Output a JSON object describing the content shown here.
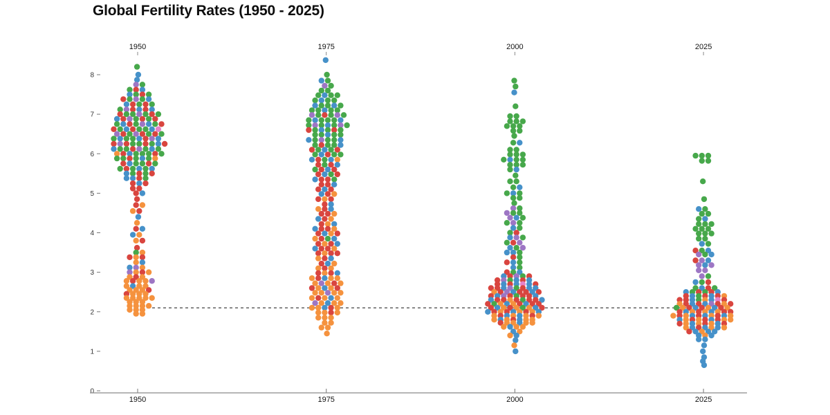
{
  "title": "Global Fertility Rates (1950 - 2025)",
  "palette": {
    "G": "#47a84b",
    "B": "#4691c9",
    "R": "#d9453f",
    "O": "#f5923e",
    "P": "#9d76c4",
    "K": "#e583c9"
  },
  "axis_colors": {
    "line": "#8a8a8a",
    "tick_text": "#222222",
    "dashed_line": "#2b2b2b"
  },
  "chart_data": {
    "type": "scatter",
    "subtype": "beeswarm",
    "title": "Global Fertility Rates (1950 - 2025)",
    "xlabel": "",
    "ylabel": "",
    "x_ticks": [
      "1950",
      "1975",
      "2000",
      "2025"
    ],
    "y_ticks": [
      0,
      1,
      2,
      3,
      4,
      5,
      6,
      7,
      8
    ],
    "ylim": [
      0,
      8.6
    ],
    "grid": false,
    "legend": "none",
    "reference_line": {
      "value": 2.1,
      "style": "dashed"
    },
    "series": [
      {
        "year": "1950",
        "rows": [
          [
            8.2,
            "G"
          ],
          [
            8.0,
            "B"
          ],
          [
            7.87,
            "B"
          ],
          [
            7.75,
            "PG"
          ],
          [
            7.62,
            "GRB"
          ],
          [
            7.5,
            "BGRG"
          ],
          [
            7.38,
            "RGPGB"
          ],
          [
            7.25,
            "BRGRG"
          ],
          [
            7.12,
            "GPRBRB"
          ],
          [
            7.0,
            "RGGPGRG"
          ],
          [
            6.88,
            "BRPGRGR"
          ],
          [
            6.75,
            "GBRGPBGR"
          ],
          [
            6.62,
            "RGBRGGBK"
          ],
          [
            6.5,
            "PRGPRGRG"
          ],
          [
            6.38,
            "GBGGBRPB"
          ],
          [
            6.25,
            "RPRGGRGBR"
          ],
          [
            6.12,
            "BGGRPGBG"
          ],
          [
            6.0,
            "ORBGGGRG"
          ],
          [
            5.88,
            "GGRGBGO"
          ],
          [
            5.75,
            "RBGGRG"
          ],
          [
            5.62,
            "GRGBGB"
          ],
          [
            5.5,
            "BGRGR"
          ],
          [
            5.38,
            "BBRG"
          ],
          [
            5.25,
            "RBR"
          ],
          [
            5.12,
            "RR"
          ],
          [
            5.0,
            "RB"
          ],
          [
            4.85,
            "R"
          ],
          [
            4.7,
            "RO"
          ],
          [
            4.55,
            "OR"
          ],
          [
            4.4,
            "B"
          ],
          [
            4.25,
            "O"
          ],
          [
            4.1,
            "RB"
          ],
          [
            3.95,
            "BO"
          ],
          [
            3.8,
            "OR"
          ],
          [
            3.62,
            "R"
          ],
          [
            3.5,
            "GO"
          ],
          [
            3.38,
            "ROR"
          ],
          [
            3.25,
            "OB"
          ],
          [
            3.12,
            "BPO"
          ],
          [
            3.0,
            "PORO"
          ],
          [
            2.88,
            "ORO"
          ],
          [
            2.78,
            "OROOP"
          ],
          [
            2.65,
            "OBOO"
          ],
          [
            2.55,
            "OOOR"
          ],
          [
            2.45,
            "ROOO"
          ],
          [
            2.35,
            "OOOOO"
          ],
          [
            2.25,
            "OOO"
          ],
          [
            2.15,
            "OOOO"
          ],
          [
            2.05,
            "OOO"
          ],
          [
            1.95,
            "OO"
          ]
        ]
      },
      {
        "year": "1975",
        "rows": [
          [
            8.37,
            "B"
          ],
          [
            8.0,
            "G"
          ],
          [
            7.85,
            "BG"
          ],
          [
            7.72,
            "PG"
          ],
          [
            7.6,
            "GG"
          ],
          [
            7.48,
            "GBGG"
          ],
          [
            7.35,
            "GBGG"
          ],
          [
            7.22,
            "BGGBG"
          ],
          [
            7.1,
            "GGBGG"
          ],
          [
            6.98,
            "PGRGPG"
          ],
          [
            6.85,
            "GBGGGB"
          ],
          [
            6.72,
            "GPGBGPG"
          ],
          [
            6.6,
            "RGBGRG"
          ],
          [
            6.48,
            "GGBGG"
          ],
          [
            6.35,
            "BGPGGB"
          ],
          [
            6.22,
            "GRGGB"
          ],
          [
            6.1,
            "RGBGR"
          ],
          [
            5.98,
            "GBRGG"
          ],
          [
            5.85,
            "BRGBO"
          ],
          [
            5.72,
            "RGRB"
          ],
          [
            5.6,
            "GRBR"
          ],
          [
            5.48,
            "RBGR"
          ],
          [
            5.35,
            "BRRG"
          ],
          [
            5.22,
            "RRB"
          ],
          [
            5.1,
            "RBR"
          ],
          [
            4.98,
            "BRO"
          ],
          [
            4.85,
            "ROR"
          ],
          [
            4.72,
            "RB"
          ],
          [
            4.6,
            "ORB"
          ],
          [
            4.48,
            "RRO"
          ],
          [
            4.35,
            "BRO"
          ],
          [
            4.22,
            "ROB"
          ],
          [
            4.1,
            "BRRO"
          ],
          [
            3.98,
            "RBOR"
          ],
          [
            3.85,
            "ORGB"
          ],
          [
            3.72,
            "RORB"
          ],
          [
            3.6,
            "BRRO"
          ],
          [
            3.48,
            "RORR"
          ],
          [
            3.35,
            "ORB"
          ],
          [
            3.22,
            "RBO"
          ],
          [
            3.1,
            "ORO"
          ],
          [
            2.98,
            "RORB"
          ],
          [
            2.85,
            "ORBOO"
          ],
          [
            2.72,
            "OPORO"
          ],
          [
            2.6,
            "ROBOR"
          ],
          [
            2.48,
            "OOPOO"
          ],
          [
            2.35,
            "OROBO"
          ],
          [
            2.22,
            "POBOO"
          ],
          [
            2.1,
            "OOBRO"
          ],
          [
            1.98,
            "OORO"
          ],
          [
            1.85,
            "OOO"
          ],
          [
            1.72,
            "OO"
          ],
          [
            1.6,
            "OO"
          ],
          [
            1.45,
            "O"
          ]
        ]
      },
      {
        "year": "2000",
        "rows": [
          [
            7.85,
            "G"
          ],
          [
            7.7,
            "G"
          ],
          [
            7.55,
            "B"
          ],
          [
            7.2,
            "G"
          ],
          [
            6.95,
            "GG"
          ],
          [
            6.82,
            "GGG"
          ],
          [
            6.7,
            "GGG"
          ],
          [
            6.58,
            "GG"
          ],
          [
            6.45,
            "G"
          ],
          [
            6.28,
            "GB"
          ],
          [
            6.1,
            "GG"
          ],
          [
            5.98,
            "GGG"
          ],
          [
            5.85,
            "GBGG"
          ],
          [
            5.72,
            "GGG"
          ],
          [
            5.6,
            "GB"
          ],
          [
            5.45,
            "G"
          ],
          [
            5.3,
            "GG"
          ],
          [
            5.15,
            "GB"
          ],
          [
            5.0,
            "GBG"
          ],
          [
            4.88,
            "GG"
          ],
          [
            4.75,
            "G"
          ],
          [
            4.62,
            "PG"
          ],
          [
            4.5,
            "PGG"
          ],
          [
            4.38,
            "PBG"
          ],
          [
            4.25,
            "GPG"
          ],
          [
            4.12,
            "BG"
          ],
          [
            4.0,
            "GR"
          ],
          [
            3.88,
            "BPG"
          ],
          [
            3.75,
            "GRP"
          ],
          [
            3.62,
            "BGP"
          ],
          [
            3.5,
            "BBG"
          ],
          [
            3.38,
            "RG"
          ],
          [
            3.25,
            "RBG"
          ],
          [
            3.12,
            "BG"
          ],
          [
            3.0,
            "RGB"
          ],
          [
            2.9,
            "BRPGR"
          ],
          [
            2.8,
            "RPGBRB"
          ],
          [
            2.7,
            "RBRBKBR"
          ],
          [
            2.6,
            "RRBPGRBB"
          ],
          [
            2.5,
            "ORPBRRBR"
          ],
          [
            2.4,
            "RBPRGRRB"
          ],
          [
            2.3,
            "BRRORGRRB"
          ],
          [
            2.2,
            "RGOBORBRR"
          ],
          [
            2.1,
            "RBOROGOBR"
          ],
          [
            2.0,
            "BRORBOROB"
          ],
          [
            1.9,
            "ORBOBORO"
          ],
          [
            1.8,
            "OBORBOO"
          ],
          [
            1.72,
            "ROOBOO"
          ],
          [
            1.62,
            "OBOO"
          ],
          [
            1.5,
            "BO"
          ],
          [
            1.4,
            "OB"
          ],
          [
            1.28,
            "B"
          ],
          [
            1.15,
            "O"
          ],
          [
            1.0,
            "B"
          ]
        ]
      },
      {
        "year": "2025",
        "rows": [
          [
            5.95,
            "GGG"
          ],
          [
            5.82,
            "GG"
          ],
          [
            5.3,
            "G"
          ],
          [
            4.85,
            "G"
          ],
          [
            4.6,
            "BG"
          ],
          [
            4.48,
            "GG"
          ],
          [
            4.35,
            "GB"
          ],
          [
            4.22,
            "GGG"
          ],
          [
            4.1,
            "GGG"
          ],
          [
            3.98,
            "GGG"
          ],
          [
            3.85,
            "GG"
          ],
          [
            3.72,
            "BG"
          ],
          [
            3.55,
            "RGB"
          ],
          [
            3.45,
            "PGB"
          ],
          [
            3.3,
            "RPB"
          ],
          [
            3.18,
            "PBP"
          ],
          [
            3.05,
            "PP"
          ],
          [
            2.9,
            "PG"
          ],
          [
            2.75,
            "BGR"
          ],
          [
            2.6,
            "GBRG"
          ],
          [
            2.5,
            "BGRGRB"
          ],
          [
            2.4,
            "RBGRBRO"
          ],
          [
            2.3,
            "RRBGOBKR"
          ],
          [
            2.2,
            "ORBRBPROR"
          ],
          [
            2.1,
            "GORBROBRO"
          ],
          [
            2.0,
            "RBOROBORR"
          ],
          [
            1.9,
            "OROBRBORBO"
          ],
          [
            1.8,
            "BORORBROO"
          ],
          [
            1.7,
            "ROBOROBR"
          ],
          [
            1.6,
            "OBRBOBO"
          ],
          [
            1.5,
            "RBOBB"
          ],
          [
            1.4,
            "BOB"
          ],
          [
            1.3,
            "BB"
          ],
          [
            1.15,
            "B"
          ],
          [
            1.0,
            "B"
          ],
          [
            0.85,
            "B"
          ],
          [
            0.75,
            "B"
          ],
          [
            0.65,
            "B"
          ]
        ]
      }
    ]
  }
}
